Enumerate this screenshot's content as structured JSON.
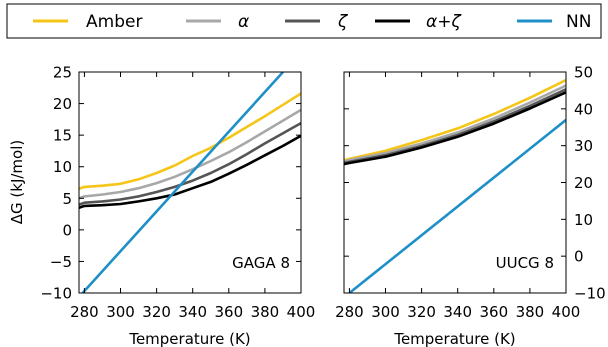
{
  "legend": {
    "entries": [
      {
        "label": "Amber",
        "color": "#f5c518",
        "math": false
      },
      {
        "label": "α",
        "color": "#a8a8a8",
        "math": true
      },
      {
        "label": "ζ",
        "color": "#555555",
        "math": true
      },
      {
        "label": "α+ζ",
        "color": "#000000",
        "math": true
      },
      {
        "label": "NN",
        "color": "#1f8fc8",
        "math": false
      }
    ]
  },
  "chart_data": [
    {
      "type": "line",
      "xlabel": "Temperature (K)",
      "ylabel": "ΔG (kJ/mol)",
      "annotation": "GAGA 8",
      "xlim": [
        277,
        400
      ],
      "ylim": [
        -10,
        25
      ],
      "xticks": [
        280,
        300,
        320,
        340,
        360,
        380,
        400
      ],
      "yticks": [
        -10,
        -5,
        0,
        5,
        10,
        15,
        20,
        25
      ],
      "ytick_labels": [
        "−10",
        "−5",
        "0",
        "5",
        "10",
        "15",
        "20",
        "25"
      ],
      "y_axis_side": "left",
      "grid": false,
      "series": [
        {
          "name": "Amber",
          "color": "#f5c518",
          "x": [
            277,
            280,
            290,
            300,
            310,
            320,
            330,
            340,
            350,
            360,
            370,
            380,
            390,
            400
          ],
          "y": [
            6.5,
            6.8,
            7.0,
            7.3,
            8.0,
            9.0,
            10.2,
            11.7,
            13.0,
            14.6,
            16.3,
            18.0,
            19.8,
            21.6
          ]
        },
        {
          "name": "α",
          "color": "#a8a8a8",
          "x": [
            277,
            280,
            290,
            300,
            310,
            320,
            330,
            340,
            350,
            360,
            370,
            380,
            390,
            400
          ],
          "y": [
            5.0,
            5.3,
            5.6,
            6.0,
            6.6,
            7.4,
            8.4,
            9.6,
            10.9,
            12.3,
            13.9,
            15.6,
            17.3,
            19.0
          ]
        },
        {
          "name": "ζ",
          "color": "#555555",
          "x": [
            277,
            280,
            290,
            300,
            310,
            320,
            330,
            340,
            350,
            360,
            370,
            380,
            390,
            400
          ],
          "y": [
            4.0,
            4.3,
            4.5,
            4.8,
            5.3,
            6.0,
            6.8,
            7.8,
            9.0,
            10.4,
            12.0,
            13.7,
            15.3,
            16.9
          ]
        },
        {
          "name": "α+ζ",
          "color": "#000000",
          "x": [
            277,
            280,
            290,
            300,
            310,
            320,
            330,
            340,
            350,
            360,
            370,
            380,
            390,
            400
          ],
          "y": [
            3.5,
            3.8,
            3.9,
            4.1,
            4.5,
            5.0,
            5.6,
            6.6,
            7.6,
            8.9,
            10.3,
            11.8,
            13.3,
            14.9
          ]
        },
        {
          "name": "NN",
          "color": "#1f8fc8",
          "x": [
            279,
            390
          ],
          "y": [
            -10,
            25
          ]
        }
      ]
    },
    {
      "type": "line",
      "xlabel": "Temperature (K)",
      "annotation": "UUCG 8",
      "xlim": [
        277,
        400
      ],
      "ylim": [
        -10,
        50
      ],
      "xticks": [
        280,
        300,
        320,
        340,
        360,
        380,
        400
      ],
      "yticks": [
        -10,
        0,
        10,
        20,
        30,
        40,
        50
      ],
      "ytick_labels": [
        "−10",
        "0",
        "10",
        "20",
        "30",
        "40",
        "50"
      ],
      "y_axis_side": "right",
      "grid": false,
      "series": [
        {
          "name": "Amber",
          "color": "#f5c518",
          "x": [
            277,
            280,
            300,
            320,
            340,
            360,
            380,
            400
          ],
          "y": [
            26.0,
            26.4,
            28.6,
            31.5,
            34.7,
            38.6,
            43.0,
            47.8
          ]
        },
        {
          "name": "α",
          "color": "#a8a8a8",
          "x": [
            277,
            280,
            300,
            320,
            340,
            360,
            380,
            400
          ],
          "y": [
            25.7,
            26.1,
            28.0,
            30.6,
            33.6,
            37.4,
            41.7,
            46.3
          ]
        },
        {
          "name": "ζ",
          "color": "#555555",
          "x": [
            277,
            280,
            300,
            320,
            340,
            360,
            380,
            400
          ],
          "y": [
            25.3,
            25.6,
            27.4,
            29.9,
            32.9,
            36.6,
            40.8,
            45.3
          ]
        },
        {
          "name": "α+ζ",
          "color": "#000000",
          "x": [
            277,
            280,
            300,
            320,
            340,
            360,
            380,
            400
          ],
          "y": [
            25.0,
            25.3,
            27.0,
            29.5,
            32.4,
            36.0,
            40.1,
            44.5
          ]
        },
        {
          "name": "NN",
          "color": "#1f8fc8",
          "x": [
            280,
            400
          ],
          "y": [
            -10,
            37
          ]
        }
      ]
    }
  ]
}
